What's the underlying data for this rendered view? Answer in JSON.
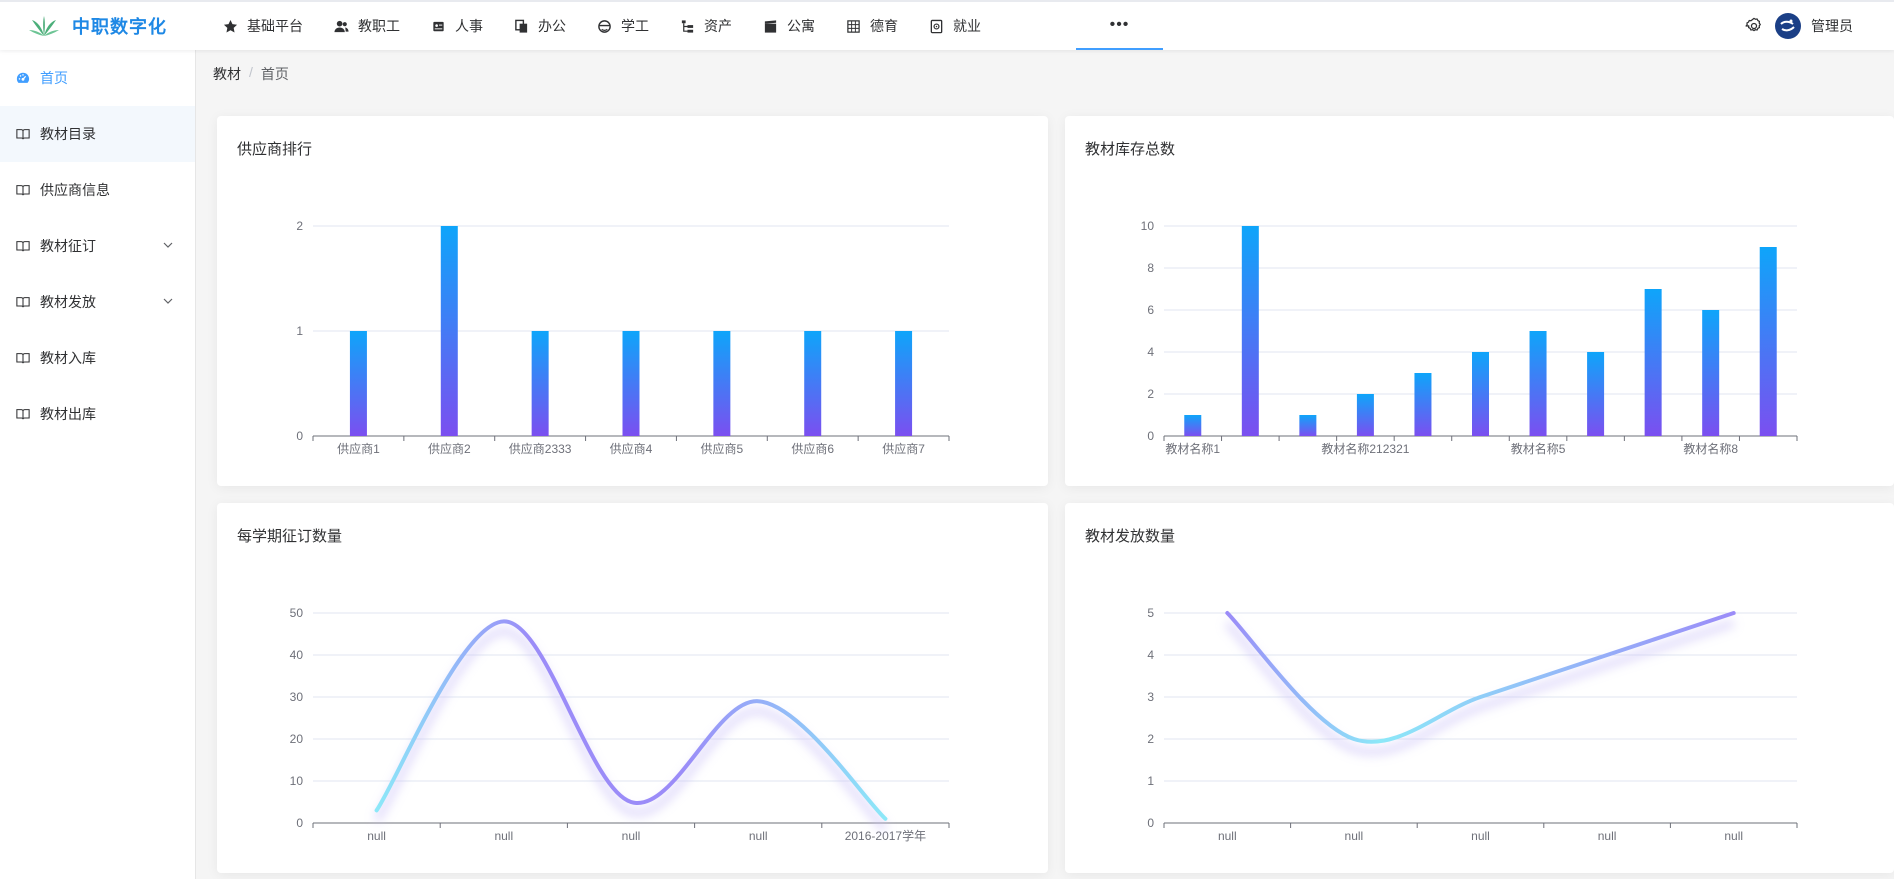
{
  "header": {
    "logo_text": "中职数字化",
    "nav": [
      {
        "label": "基础平台",
        "icon": "star-icon"
      },
      {
        "label": "教职工",
        "icon": "users-icon"
      },
      {
        "label": "人事",
        "icon": "id-card-icon"
      },
      {
        "label": "办公",
        "icon": "documents-icon"
      },
      {
        "label": "学工",
        "icon": "student-icon"
      },
      {
        "label": "资产",
        "icon": "tree-list-icon"
      },
      {
        "label": "公寓",
        "icon": "clapper-icon"
      },
      {
        "label": "德育",
        "icon": "grid-icon"
      },
      {
        "label": "就业",
        "icon": "safe-icon"
      }
    ],
    "more_label": "•••",
    "user_name": "管理员"
  },
  "sidebar": {
    "items": [
      {
        "label": "首页",
        "icon": "dashboard-icon",
        "active": true
      },
      {
        "label": "教材目录",
        "icon": "book-icon",
        "hovered": true
      },
      {
        "label": "供应商信息",
        "icon": "book-icon"
      },
      {
        "label": "教材征订",
        "icon": "book-icon",
        "expandable": true
      },
      {
        "label": "教材发放",
        "icon": "book-icon",
        "expandable": true
      },
      {
        "label": "教材入库",
        "icon": "book-icon"
      },
      {
        "label": "教材出库",
        "icon": "book-icon"
      }
    ]
  },
  "breadcrumb": {
    "parent": "教材",
    "separator": "/",
    "current": "首页"
  },
  "charts": {
    "supplier_title": "供应商排行",
    "stock_title": "教材库存总数",
    "semester_title": "每学期征订数量",
    "issue_title": "教材发放数量"
  },
  "colors": {
    "accent": "#409eff",
    "bar_top": "#0ea5fa",
    "bar_bottom": "#7b4ff0",
    "line_start": "#9b8cf8",
    "line_mid": "#8ce8f8"
  },
  "chart_data": [
    {
      "type": "bar",
      "title": "供应商排行",
      "categories": [
        "供应商1",
        "供应商2",
        "供应商2333",
        "供应商4",
        "供应商5",
        "供应商6",
        "供应商7"
      ],
      "values": [
        1,
        2,
        1,
        1,
        1,
        1,
        1
      ],
      "ylim": [
        0,
        2
      ],
      "yticks": [
        0,
        1,
        2
      ],
      "grid": true
    },
    {
      "type": "bar",
      "title": "教材库存总数",
      "categories": [
        "教材名称1",
        "",
        "",
        "教材名称212321",
        "",
        "",
        "教材名称5",
        "",
        "",
        "教材名称8",
        ""
      ],
      "values": [
        1,
        10,
        1,
        2,
        3,
        4,
        5,
        4,
        7,
        6,
        9
      ],
      "ylim": [
        0,
        10
      ],
      "yticks": [
        0,
        2,
        4,
        6,
        8,
        10
      ],
      "grid": true
    },
    {
      "type": "line",
      "title": "每学期征订数量",
      "categories": [
        "null",
        "null",
        "null",
        "null",
        "2016-2017学年"
      ],
      "values": [
        3,
        48,
        5,
        29,
        1
      ],
      "ylim": [
        0,
        50
      ],
      "yticks": [
        0,
        10,
        20,
        30,
        40,
        50
      ],
      "smooth": true,
      "grid": true
    },
    {
      "type": "line",
      "title": "教材发放数量",
      "categories": [
        "null",
        "null",
        "null",
        "null",
        "null"
      ],
      "values": [
        5,
        2,
        3,
        4,
        5
      ],
      "ylim": [
        0,
        5
      ],
      "yticks": [
        0,
        1,
        2,
        3,
        4,
        5
      ],
      "smooth": true,
      "grid": true
    }
  ]
}
